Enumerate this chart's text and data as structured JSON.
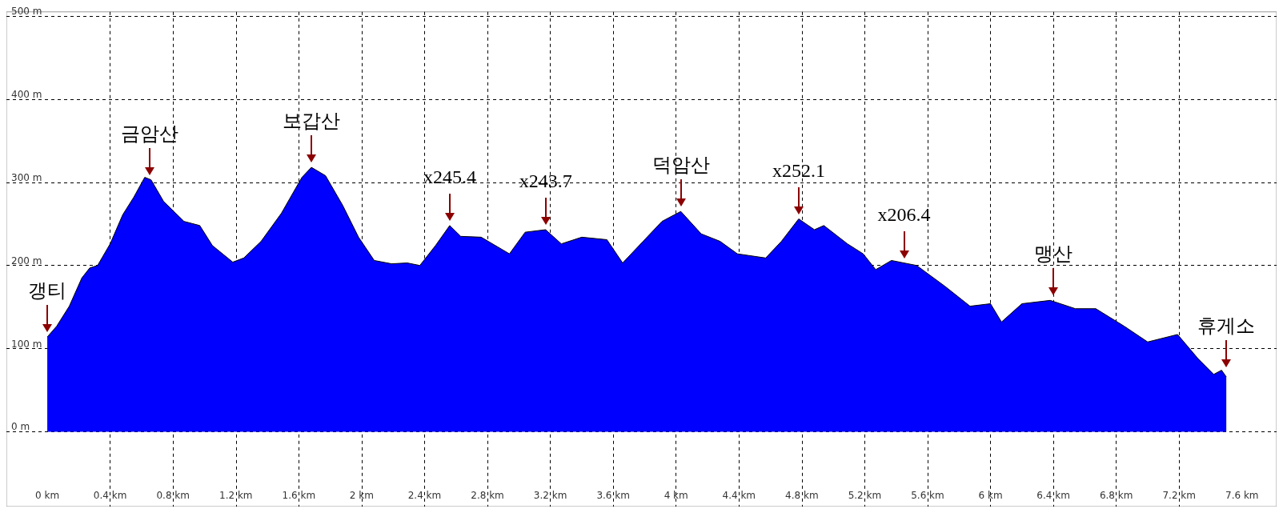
{
  "chart_data": {
    "type": "area",
    "x": [
      0,
      0.06,
      0.14,
      0.22,
      0.27,
      0.32,
      0.4,
      0.48,
      0.55,
      0.62,
      0.66,
      0.74,
      0.87,
      0.97,
      1.05,
      1.18,
      1.25,
      1.36,
      1.49,
      1.62,
      1.68,
      1.77,
      1.88,
      1.98,
      2.08,
      2.19,
      2.29,
      2.37,
      2.47,
      2.56,
      2.63,
      2.76,
      2.94,
      3.04,
      3.17,
      3.27,
      3.4,
      3.56,
      3.66,
      3.79,
      3.91,
      4.03,
      4.16,
      4.28,
      4.39,
      4.57,
      4.67,
      4.78,
      4.88,
      4.94,
      5.09,
      5.19,
      5.27,
      5.37,
      5.53,
      5.71,
      5.87,
      6.0,
      6.07,
      6.2,
      6.38,
      6.54,
      6.67,
      6.85,
      7.0,
      7.19,
      7.32,
      7.42,
      7.47,
      7.5
    ],
    "series": [
      {
        "color": "#0000ff",
        "values": [
          114,
          127,
          151,
          185,
          197,
          200,
          226,
          261,
          282,
          306,
          303,
          277,
          253,
          248,
          224,
          204,
          209,
          229,
          263,
          306,
          318,
          308,
          272,
          234,
          206,
          202,
          203,
          200,
          224,
          248,
          235,
          234,
          214,
          240,
          243,
          226,
          234,
          231,
          203,
          229,
          253,
          265,
          238,
          229,
          214,
          209,
          229,
          256,
          243,
          248,
          226,
          214,
          195,
          206,
          200,
          175,
          151,
          154,
          132,
          154,
          158,
          148,
          148,
          127,
          108,
          117,
          88,
          69,
          74,
          66
        ]
      }
    ],
    "xlim": [
      -0.26,
      7.82
    ],
    "ylim": [
      -90,
      505
    ],
    "xticks": [
      {
        "value": 0,
        "label": "0 km"
      },
      {
        "value": 0.4,
        "label": "0.4 km"
      },
      {
        "value": 0.8,
        "label": "0.8 km"
      },
      {
        "value": 1.2,
        "label": "1.2 km"
      },
      {
        "value": 1.6,
        "label": "1.6 km"
      },
      {
        "value": 2,
        "label": "2 km"
      },
      {
        "value": 2.4,
        "label": "2.4 km"
      },
      {
        "value": 2.8,
        "label": "2.8 km"
      },
      {
        "value": 3.2,
        "label": "3.2 km"
      },
      {
        "value": 3.6,
        "label": "3.6 km"
      },
      {
        "value": 4,
        "label": "4 km"
      },
      {
        "value": 4.4,
        "label": "4.4 km"
      },
      {
        "value": 4.8,
        "label": "4.8 km"
      },
      {
        "value": 5.2,
        "label": "5.2 km"
      },
      {
        "value": 5.6,
        "label": "5.6 km"
      },
      {
        "value": 6,
        "label": "6 km"
      },
      {
        "value": 6.4,
        "label": "6.4 km"
      },
      {
        "value": 6.8,
        "label": "6.8 km"
      },
      {
        "value": 7.2,
        "label": "7.2 km"
      },
      {
        "value": 7.6,
        "label": "7.6 km"
      }
    ],
    "yticks": [
      {
        "value": 0,
        "label": "0 m"
      },
      {
        "value": 100,
        "label": "100 m"
      },
      {
        "value": 200,
        "label": "200 m"
      },
      {
        "value": 300,
        "label": "300 m"
      },
      {
        "value": 400,
        "label": "400 m"
      },
      {
        "value": 500,
        "label": "500 m"
      }
    ],
    "grid": true,
    "annotations": [
      {
        "text": "갱티",
        "x": 0,
        "y": 114
      },
      {
        "text": "금암산",
        "x": 0.65,
        "y": 303
      },
      {
        "text": "보갑산",
        "x": 1.68,
        "y": 318
      },
      {
        "text": "x245.4",
        "x": 2.56,
        "y": 248
      },
      {
        "text": "x243.7",
        "x": 3.17,
        "y": 243
      },
      {
        "text": "덕암산",
        "x": 4.03,
        "y": 265
      },
      {
        "text": "x252.1",
        "x": 4.78,
        "y": 256
      },
      {
        "text": "x206.4",
        "x": 5.45,
        "y": 203
      },
      {
        "text": "맹산",
        "x": 6.4,
        "y": 158
      },
      {
        "text": "휴게소",
        "x": 7.5,
        "y": 72
      }
    ]
  }
}
